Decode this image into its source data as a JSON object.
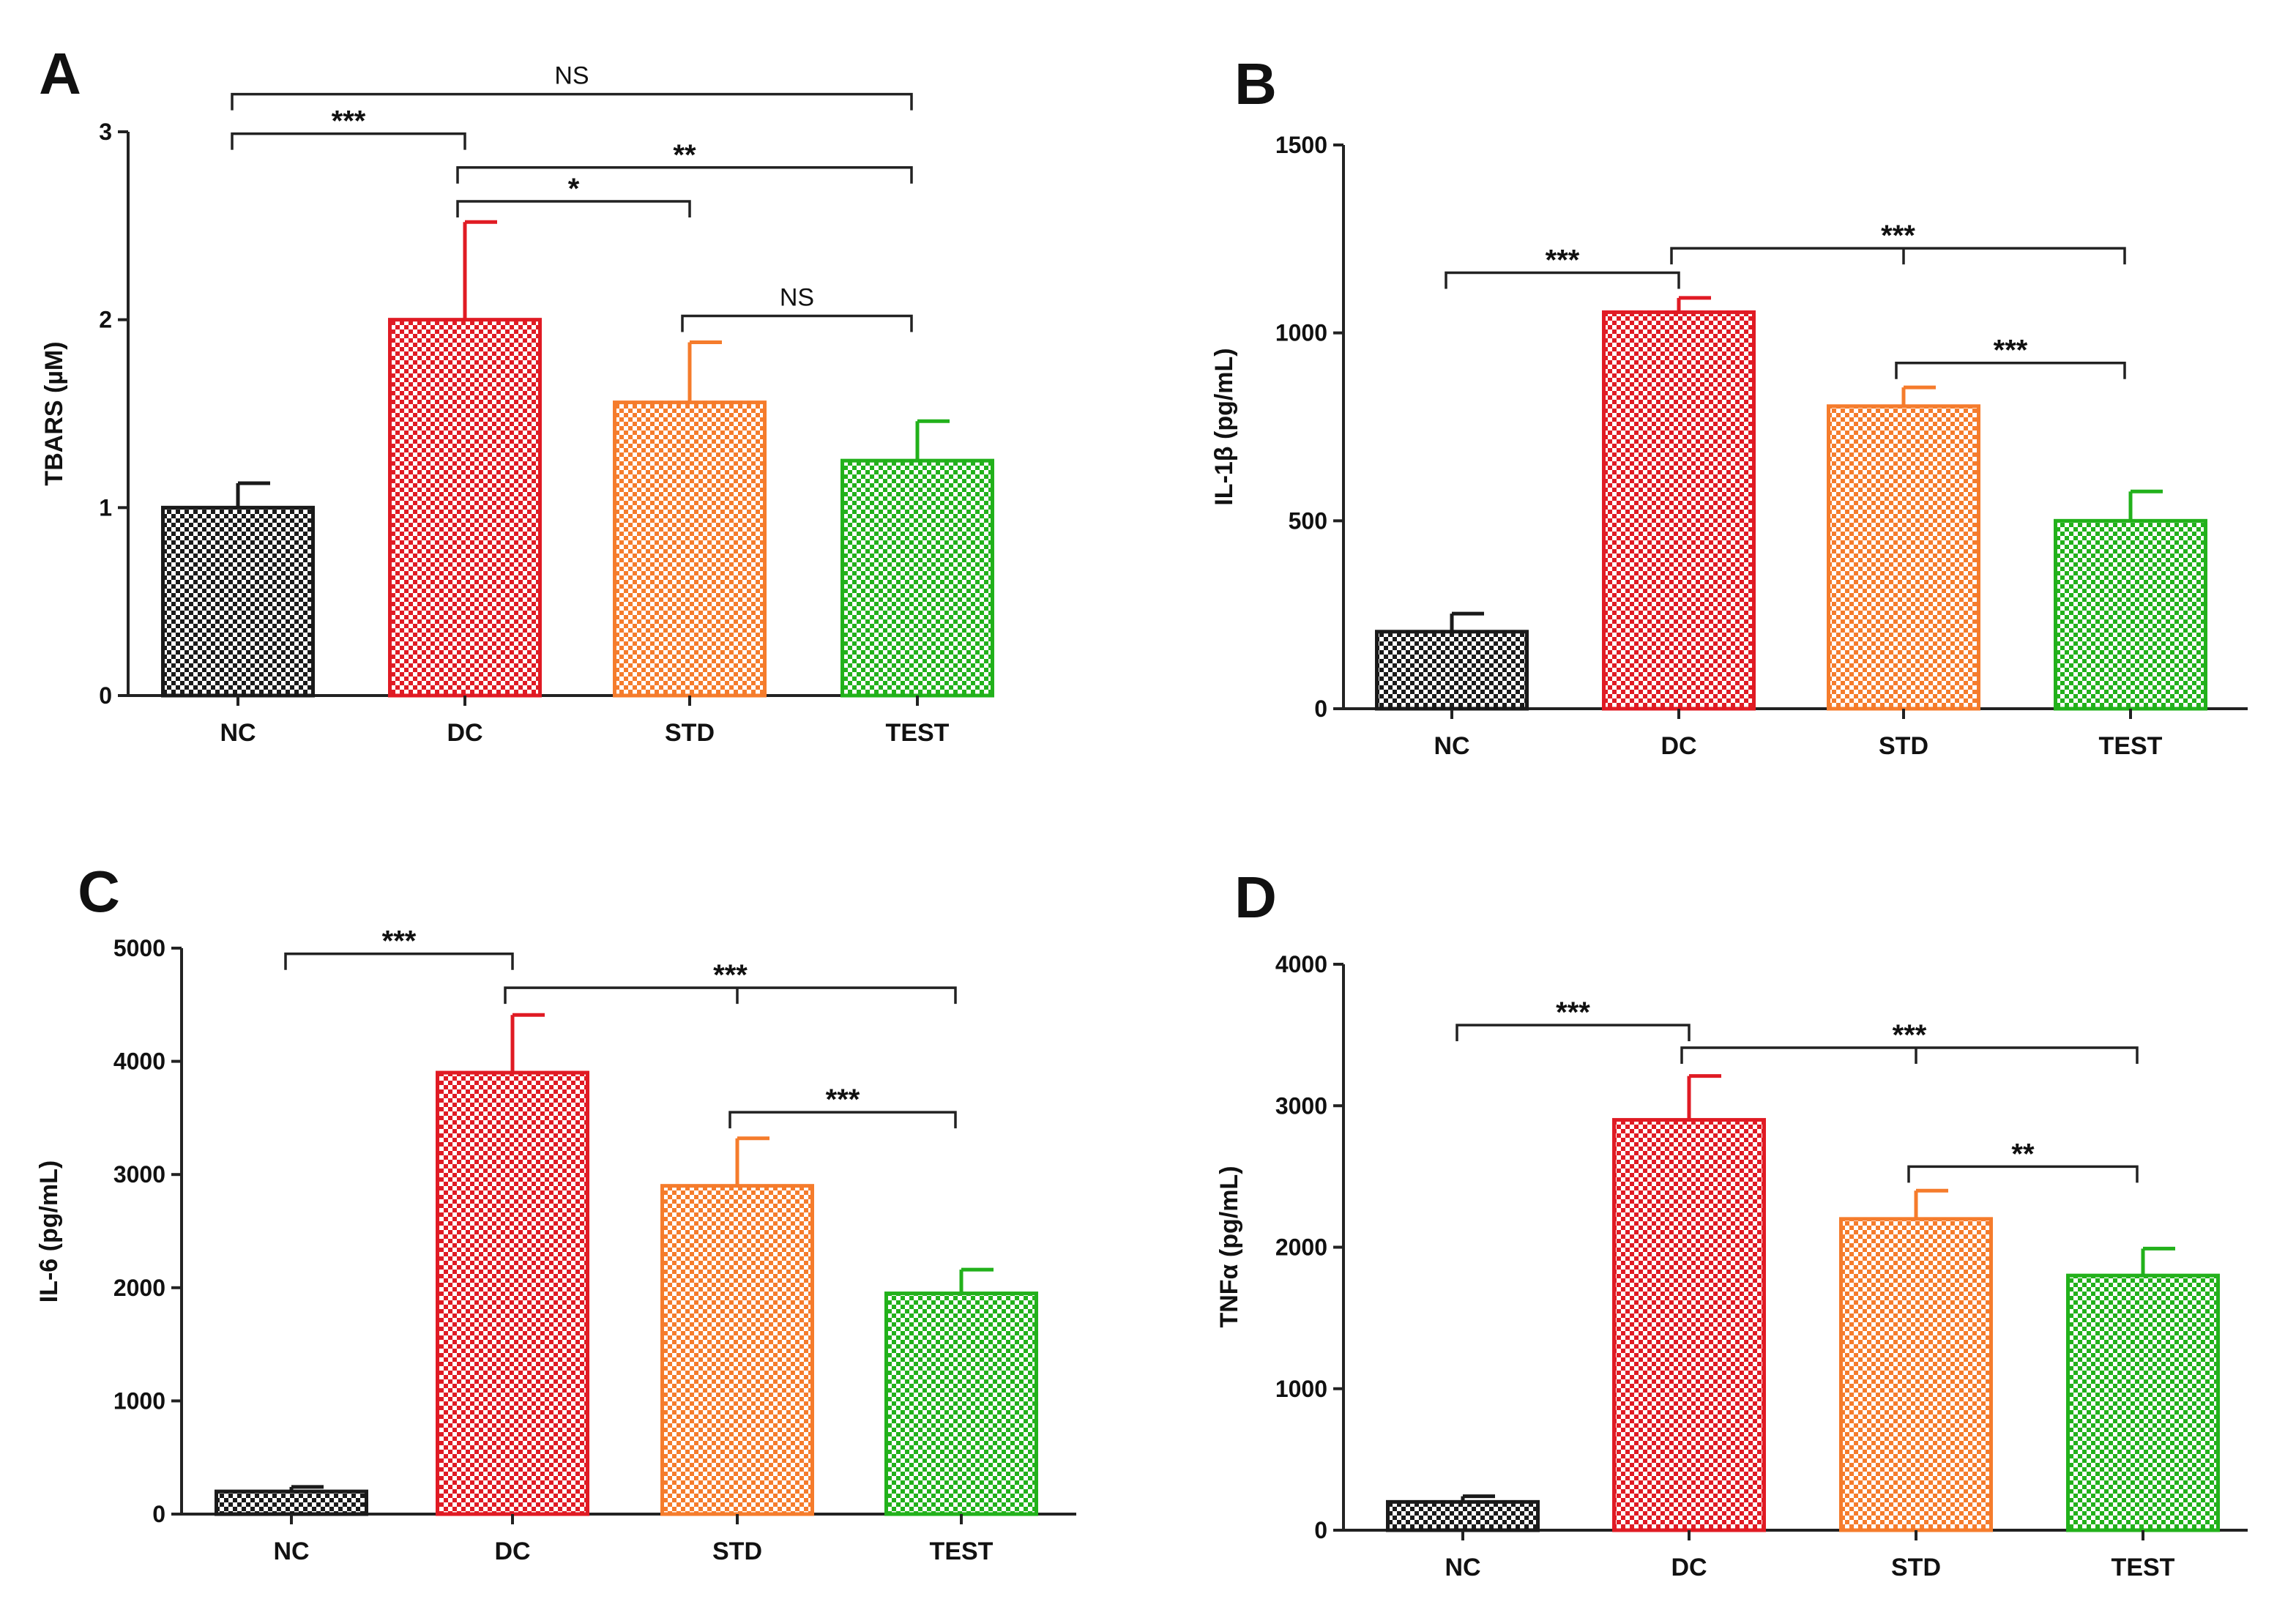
{
  "figure": {
    "colors": {
      "NC": "#1a1a1a",
      "DC": "#e01b24",
      "STD": "#f57c2c",
      "TEST": "#22b11b"
    }
  },
  "chart_data": [
    {
      "panel": "A",
      "type": "bar",
      "ylabel": "TBARS (µM)",
      "categories": [
        "NC",
        "DC",
        "STD",
        "TEST"
      ],
      "values": [
        1.0,
        2.0,
        1.56,
        1.25
      ],
      "errors": [
        0.13,
        0.52,
        0.32,
        0.21
      ],
      "ylim": [
        0,
        3
      ],
      "yticks": [
        0,
        1,
        2,
        3
      ],
      "ytick_labels": [
        "0",
        "1",
        "2",
        "3"
      ],
      "comparisons": [
        {
          "from": 0,
          "to": 3,
          "label": "NS",
          "level": 3.2
        },
        {
          "from": 0,
          "to": 1,
          "label": "***",
          "level": 2.99
        },
        {
          "from": 1,
          "to": 3,
          "label": "**",
          "level": 2.81
        },
        {
          "from": 1,
          "to": 2,
          "label": "*",
          "level": 2.63
        },
        {
          "from": 2,
          "to": 3,
          "label": "NS",
          "level": 2.02
        }
      ]
    },
    {
      "panel": "B",
      "type": "bar",
      "ylabel": "IL-1β (pg/mL)",
      "categories": [
        "NC",
        "DC",
        "STD",
        "TEST"
      ],
      "values": [
        205,
        1055,
        805,
        500
      ],
      "errors": [
        48,
        38,
        50,
        78
      ],
      "ylim": [
        0,
        1500
      ],
      "yticks": [
        0,
        500,
        1000,
        1500
      ],
      "ytick_labels": [
        "0",
        "500",
        "1000",
        "1500"
      ],
      "comparisons": [
        {
          "from": 0,
          "to": 1,
          "label": "***",
          "level": 1160
        },
        {
          "from": 1,
          "to": 3,
          "label": "***",
          "level": 1225,
          "centerTick": true
        },
        {
          "from": 2,
          "to": 3,
          "label": "***",
          "level": 920
        }
      ]
    },
    {
      "panel": "C",
      "type": "bar",
      "ylabel": "IL-6 (pg/mL)",
      "categories": [
        "NC",
        "DC",
        "STD",
        "TEST"
      ],
      "values": [
        200,
        3900,
        2900,
        1950
      ],
      "errors": [
        40,
        510,
        420,
        210
      ],
      "ylim": [
        0,
        5000
      ],
      "yticks": [
        0,
        1000,
        2000,
        3000,
        4000,
        5000
      ],
      "ytick_labels": [
        "0",
        "1000",
        "2000",
        "3000",
        "4000",
        "5000"
      ],
      "comparisons": [
        {
          "from": 0,
          "to": 1,
          "label": "***",
          "level": 4950
        },
        {
          "from": 1,
          "to": 3,
          "label": "***",
          "level": 4650,
          "centerTick": true
        },
        {
          "from": 2,
          "to": 3,
          "label": "***",
          "level": 3550
        }
      ]
    },
    {
      "panel": "D",
      "type": "bar",
      "ylabel": "TNFα (pg/mL)",
      "categories": [
        "NC",
        "DC",
        "STD",
        "TEST"
      ],
      "values": [
        200,
        2900,
        2200,
        1800
      ],
      "errors": [
        40,
        310,
        200,
        190
      ],
      "ylim": [
        0,
        4000
      ],
      "yticks": [
        0,
        1000,
        2000,
        3000,
        4000
      ],
      "ytick_labels": [
        "0",
        "1000",
        "2000",
        "3000",
        "4000"
      ],
      "comparisons": [
        {
          "from": 0,
          "to": 1,
          "label": "***",
          "level": 3570
        },
        {
          "from": 1,
          "to": 3,
          "label": "***",
          "level": 3410,
          "centerTick": true
        },
        {
          "from": 2,
          "to": 3,
          "label": "**",
          "level": 2570
        }
      ]
    }
  ]
}
